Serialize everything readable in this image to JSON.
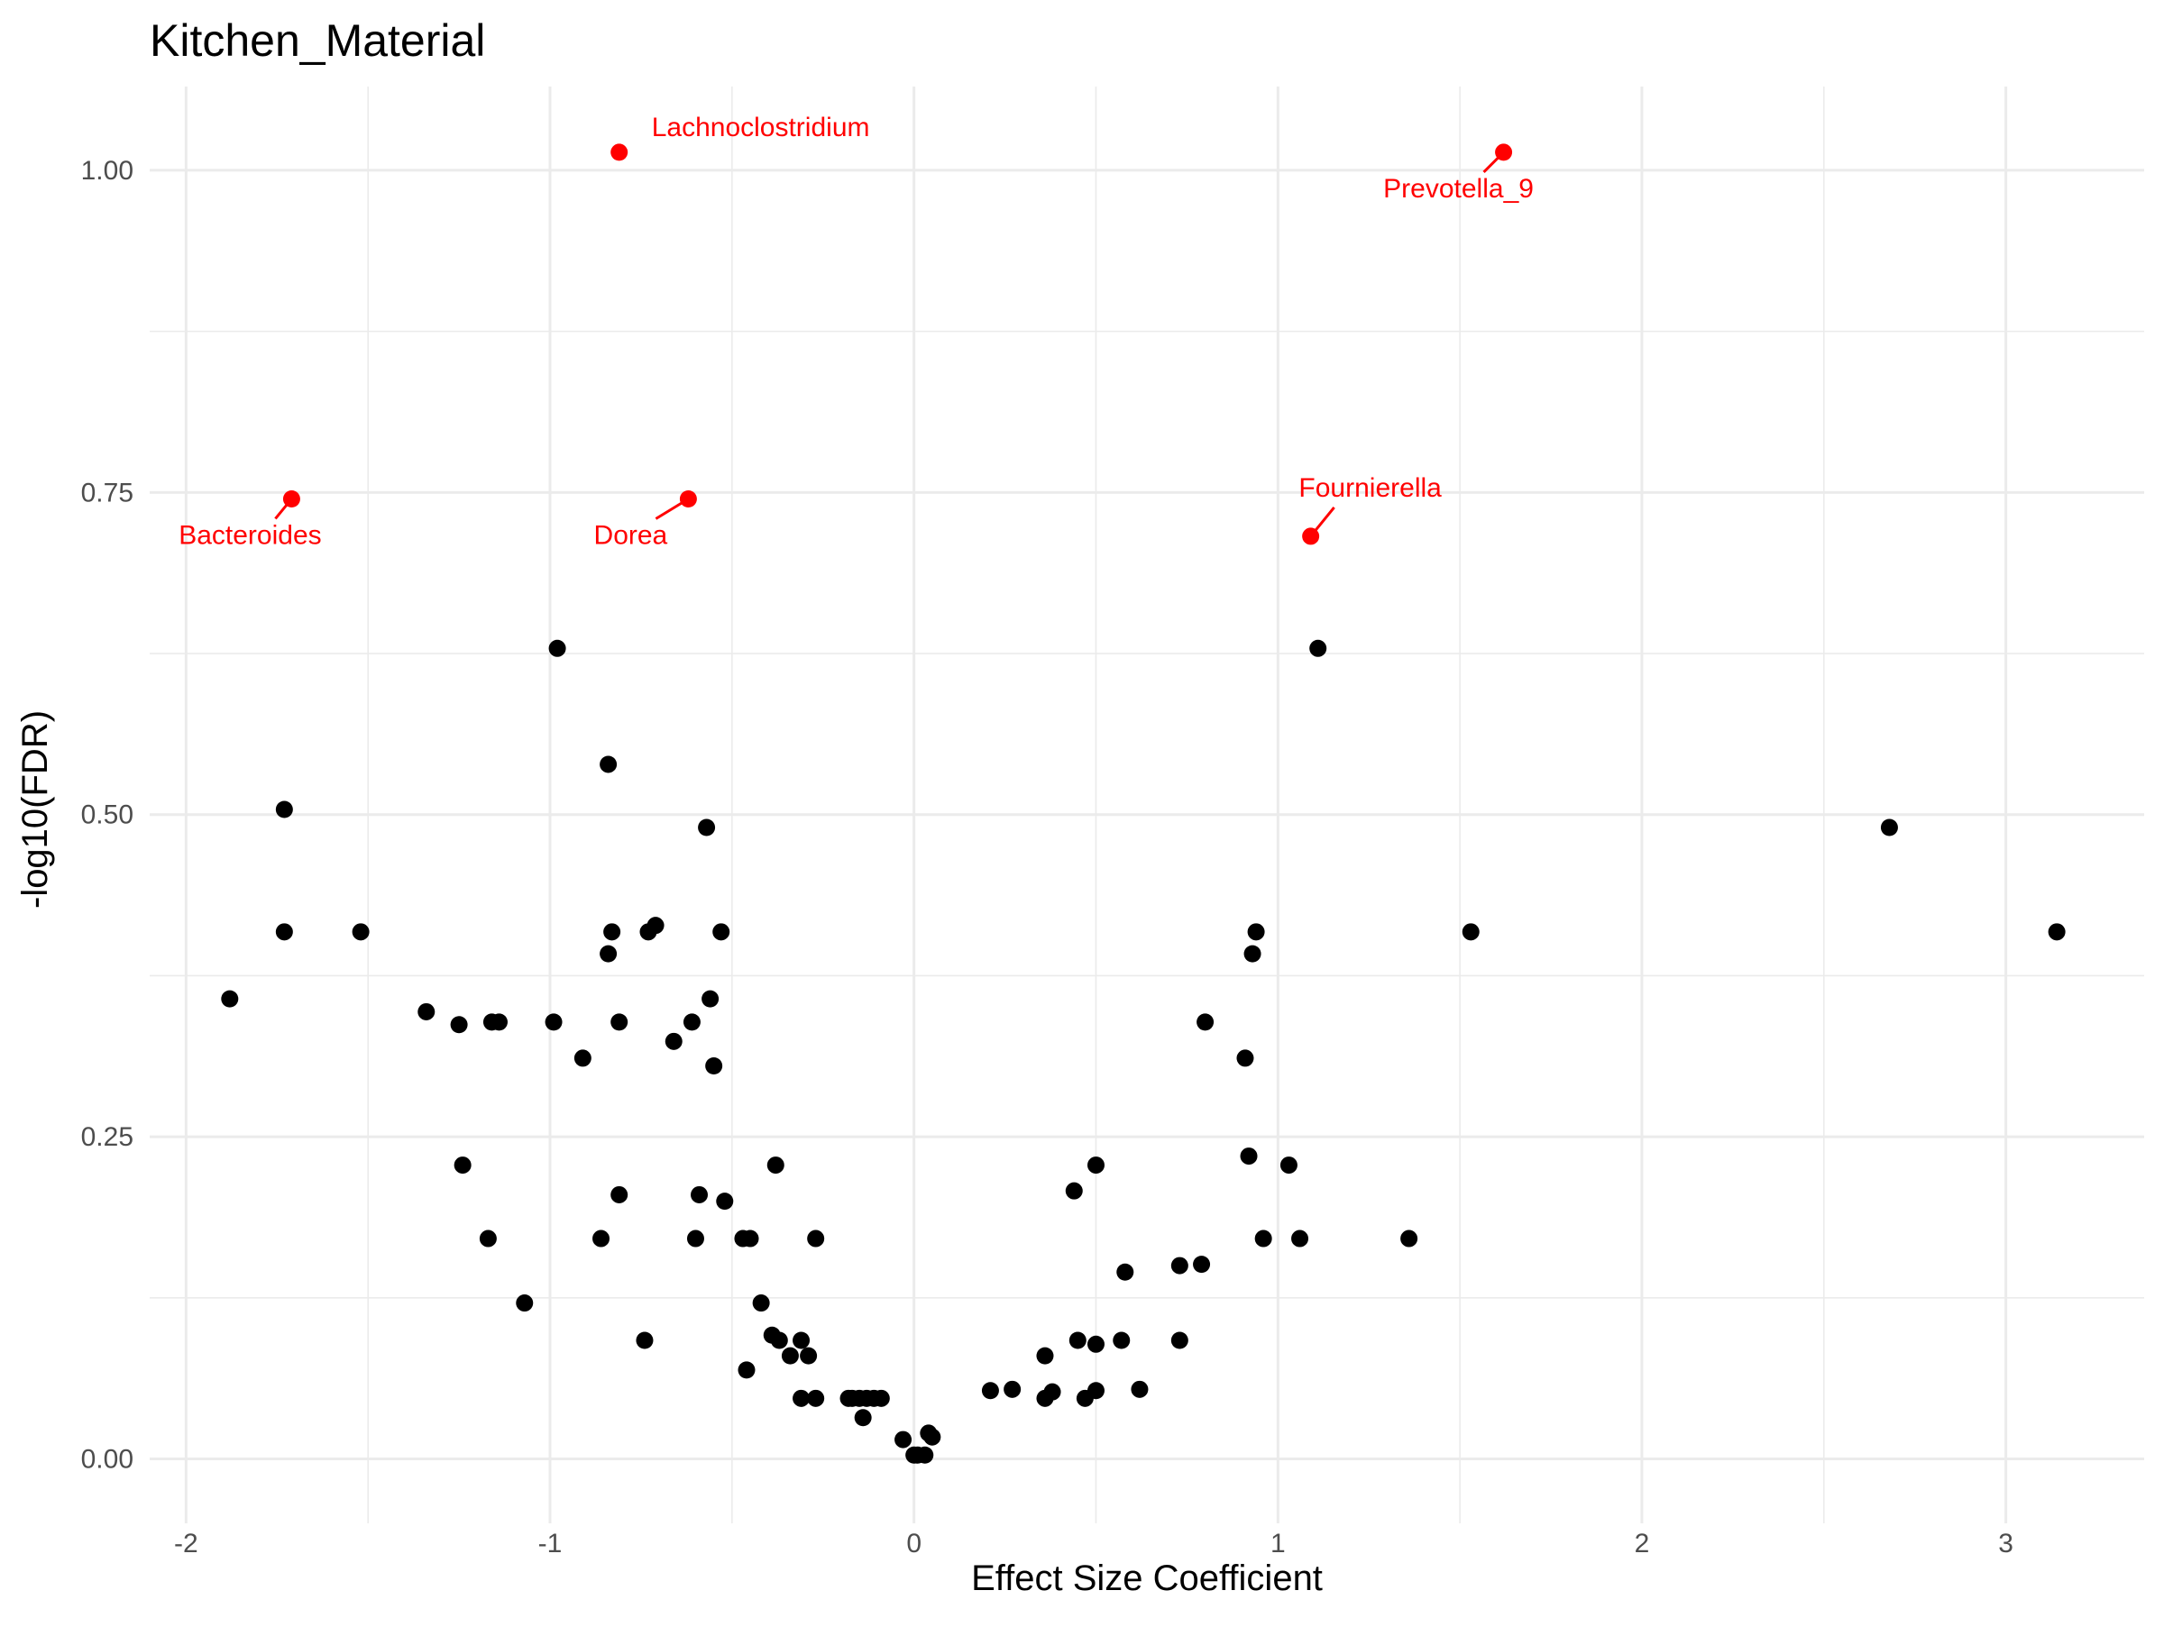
{
  "chart_data": {
    "type": "scatter",
    "title": "Kitchen_Material",
    "xlabel": "Effect Size Coefficient",
    "ylabel": "-log10(FDR)",
    "xlim": [
      -2.1,
      3.38
    ],
    "ylim": [
      -0.05,
      1.065
    ],
    "x_ticks": [
      -2,
      -1,
      0,
      1,
      2,
      3
    ],
    "x_tick_labels": [
      "-2",
      "-1",
      "0",
      "1",
      "2",
      "3"
    ],
    "y_ticks": [
      0,
      0.25,
      0.5,
      0.75,
      1.0
    ],
    "y_tick_labels": [
      "0.00",
      "0.25",
      "0.50",
      "0.75",
      "1.00"
    ],
    "grid": true,
    "colors": {
      "point": "#000000",
      "highlight": "#ff0000",
      "grid": "#ebebeb"
    },
    "highlighted": [
      {
        "name": "Lachnoclostridium",
        "x": -0.81,
        "y": 1.014
      },
      {
        "name": "Prevotella_9",
        "x": 1.62,
        "y": 1.014
      },
      {
        "name": "Bacteroides",
        "x": -1.71,
        "y": 0.745
      },
      {
        "name": "Dorea",
        "x": -0.62,
        "y": 0.745
      },
      {
        "name": "Fournierella",
        "x": 1.09,
        "y": 0.716
      }
    ],
    "points": [
      [
        -0.98,
        0.629
      ],
      [
        1.11,
        0.629
      ],
      [
        -0.84,
        0.539
      ],
      [
        -1.73,
        0.504
      ],
      [
        -0.57,
        0.49
      ],
      [
        2.68,
        0.49
      ],
      [
        -1.73,
        0.409
      ],
      [
        -1.52,
        0.409
      ],
      [
        -0.83,
        0.409
      ],
      [
        -0.73,
        0.409
      ],
      [
        -0.71,
        0.414
      ],
      [
        -0.53,
        0.409
      ],
      [
        0.94,
        0.409
      ],
      [
        1.53,
        0.409
      ],
      [
        3.14,
        0.409
      ],
      [
        -0.84,
        0.392
      ],
      [
        0.93,
        0.392
      ],
      [
        -1.88,
        0.357
      ],
      [
        -0.56,
        0.357
      ],
      [
        -1.34,
        0.347
      ],
      [
        -1.25,
        0.337
      ],
      [
        -1.16,
        0.339
      ],
      [
        -1.14,
        0.339
      ],
      [
        -0.99,
        0.339
      ],
      [
        -0.81,
        0.339
      ],
      [
        -0.61,
        0.339
      ],
      [
        0.8,
        0.339
      ],
      [
        -0.66,
        0.324
      ],
      [
        -0.91,
        0.311
      ],
      [
        0.91,
        0.311
      ],
      [
        -0.55,
        0.305
      ],
      [
        0.92,
        0.235
      ],
      [
        -1.24,
        0.228
      ],
      [
        -0.38,
        0.228
      ],
      [
        0.5,
        0.228
      ],
      [
        1.03,
        0.228
      ],
      [
        0.44,
        0.208
      ],
      [
        -0.81,
        0.205
      ],
      [
        -0.59,
        0.205
      ],
      [
        -0.52,
        0.2
      ],
      [
        -1.17,
        0.171
      ],
      [
        -0.86,
        0.171
      ],
      [
        -0.6,
        0.171
      ],
      [
        -0.47,
        0.171
      ],
      [
        -0.45,
        0.171
      ],
      [
        -0.27,
        0.171
      ],
      [
        0.96,
        0.171
      ],
      [
        1.06,
        0.171
      ],
      [
        1.36,
        0.171
      ],
      [
        0.73,
        0.15
      ],
      [
        0.79,
        0.151
      ],
      [
        0.58,
        0.145
      ],
      [
        -1.07,
        0.121
      ],
      [
        -0.42,
        0.121
      ],
      [
        -0.74,
        0.092
      ],
      [
        -0.39,
        0.096
      ],
      [
        -0.37,
        0.092
      ],
      [
        -0.31,
        0.092
      ],
      [
        0.45,
        0.092
      ],
      [
        0.57,
        0.092
      ],
      [
        0.73,
        0.092
      ],
      [
        0.5,
        0.089
      ],
      [
        -0.34,
        0.08
      ],
      [
        -0.29,
        0.08
      ],
      [
        0.36,
        0.08
      ],
      [
        -0.46,
        0.069
      ],
      [
        0.21,
        0.053
      ],
      [
        0.27,
        0.054
      ],
      [
        0.38,
        0.052
      ],
      [
        0.5,
        0.053
      ],
      [
        0.62,
        0.054
      ],
      [
        -0.31,
        0.047
      ],
      [
        -0.27,
        0.047
      ],
      [
        -0.18,
        0.047
      ],
      [
        -0.17,
        0.047
      ],
      [
        -0.15,
        0.047
      ],
      [
        -0.13,
        0.047
      ],
      [
        -0.11,
        0.047
      ],
      [
        -0.09,
        0.047
      ],
      [
        0.36,
        0.047
      ],
      [
        0.47,
        0.047
      ],
      [
        -0.14,
        0.032
      ],
      [
        -0.03,
        0.015
      ],
      [
        0.04,
        0.02
      ],
      [
        0.05,
        0.017
      ],
      [
        0.0,
        0.003
      ],
      [
        0.01,
        0.003
      ],
      [
        0.03,
        0.003
      ]
    ]
  }
}
